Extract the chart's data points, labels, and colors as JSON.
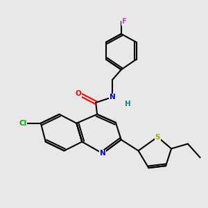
{
  "bg_color": "#e8e8e8",
  "bond_color": "#000000",
  "bond_width": 1.5,
  "atom_colors": {
    "N": "#0000ff",
    "O": "#ff0000",
    "Cl": "#00aa00",
    "S": "#aaaa00",
    "F": "#cc44cc",
    "H": "#008888",
    "C": "#000000"
  },
  "figsize": [
    3.0,
    3.0
  ],
  "dpi": 100,
  "xlim": [
    0,
    10
  ],
  "ylim": [
    0,
    10
  ],
  "label_fontsize": 7.5
}
